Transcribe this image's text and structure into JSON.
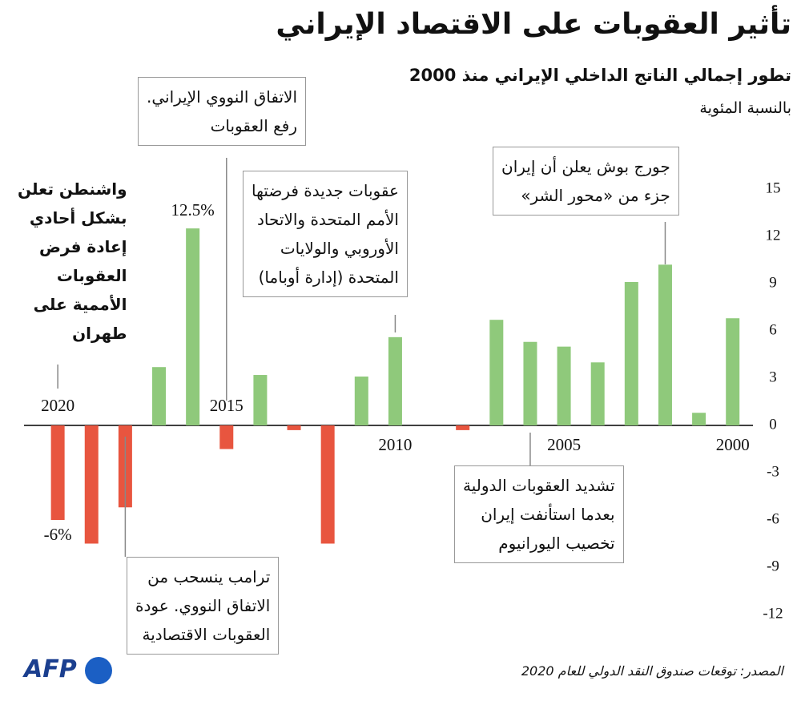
{
  "chart_data": {
    "type": "bar",
    "title": "تأثير العقوبات على الاقتصاد الإيراني",
    "subtitle": "تطور إجمالي الناتج الداخلي الإيراني منذ 2000",
    "unit_label": "بالنسبة المئوية",
    "source": "المصدر: توقعات صندوق النقد الدولي للعام 2020",
    "logo": "AFP",
    "x": [
      2000,
      2001,
      2002,
      2003,
      2004,
      2005,
      2006,
      2007,
      2008,
      2009,
      2010,
      2011,
      2012,
      2013,
      2014,
      2015,
      2016,
      2017,
      2018,
      2019,
      2020
    ],
    "values": [
      6.8,
      0.8,
      10.2,
      9.1,
      4.0,
      5.0,
      5.3,
      6.7,
      -0.3,
      0,
      5.6,
      3.1,
      -7.5,
      -0.3,
      3.2,
      -1.5,
      12.5,
      3.7,
      -5.2,
      -7.5,
      -6
    ],
    "value_labels": [
      null,
      null,
      null,
      null,
      null,
      null,
      null,
      null,
      null,
      null,
      null,
      null,
      null,
      null,
      null,
      null,
      "12.5%",
      null,
      null,
      null,
      "-6%"
    ],
    "positive_color": "#8fc97b",
    "negative_color": "#e8553f",
    "xlim": [
      2021,
      1999.4
    ],
    "xticks": [
      2000,
      2005,
      2010,
      2015,
      2020
    ],
    "ylim": [
      -13,
      17
    ],
    "yticks": [
      -12,
      -9,
      -6,
      -3,
      0,
      3,
      6,
      9,
      12,
      15
    ],
    "annotations": [
      {
        "x": 2015,
        "lines": [
          "الاتفاق النووي الإيراني.",
          "رفع العقوبات"
        ]
      },
      {
        "x": 2020,
        "lines": [
          "واشنطن تعلن",
          "بشكل أحادي",
          "إعادة فرض",
          "العقوبات",
          "الأممية على",
          "طهران"
        ]
      },
      {
        "x": 2010,
        "lines": [
          "عقوبات جديدة فرضتها",
          "الأمم المتحدة والاتحاد",
          "الأوروبي والولايات",
          "المتحدة (إدارة أوباما)"
        ]
      },
      {
        "x": 2002,
        "lines": [
          "جورج بوش يعلن أن إيران",
          "جزء من «محور الشر»"
        ]
      },
      {
        "x": 2006,
        "lines": [
          "تشديد العقوبات الدولية",
          "بعدما استأنفت إيران",
          "تخصيب اليورانيوم"
        ]
      },
      {
        "x": 2018,
        "lines": [
          "ترامب ينسحب من",
          "الاتفاق النووي. عودة",
          "العقوبات الاقتصادية"
        ]
      }
    ]
  }
}
